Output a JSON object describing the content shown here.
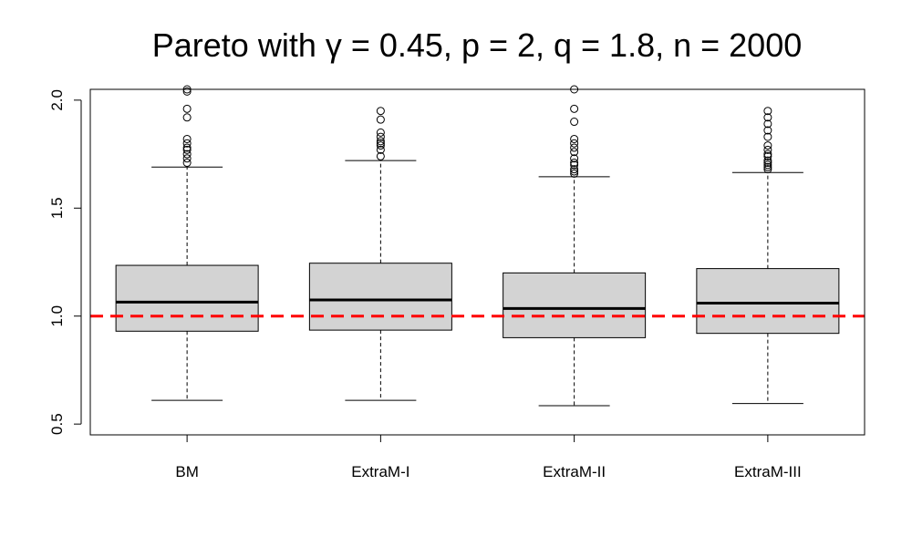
{
  "chart_data": {
    "type": "boxplot",
    "title": "Pareto with γ = 0.45, p = 2, q = 1.8, n = 2000",
    "xlabel": "",
    "ylabel": "",
    "ylim": [
      0.45,
      2.05
    ],
    "yticks": [
      0.5,
      1.0,
      1.5,
      2.0
    ],
    "ytick_labels": [
      "0.5",
      "1.0",
      "1.5",
      "2.0"
    ],
    "reference_line": {
      "y": 1.0,
      "color": "#ff0000",
      "style": "dashed"
    },
    "box_color": "#d3d3d3",
    "categories": [
      "BM",
      "ExtraM-I",
      "ExtraM-II",
      "ExtraM-III"
    ],
    "boxes": [
      {
        "name": "BM",
        "whisker_low": 0.61,
        "q1": 0.93,
        "median": 1.065,
        "q3": 1.235,
        "whisker_high": 1.69,
        "outliers": [
          1.71,
          1.73,
          1.75,
          1.77,
          1.78,
          1.8,
          1.82,
          1.92,
          1.96,
          2.04,
          2.05
        ]
      },
      {
        "name": "ExtraM-I",
        "whisker_low": 0.61,
        "q1": 0.935,
        "median": 1.075,
        "q3": 1.245,
        "whisker_high": 1.72,
        "outliers": [
          1.74,
          1.77,
          1.79,
          1.8,
          1.81,
          1.83,
          1.85,
          1.91,
          1.95
        ]
      },
      {
        "name": "ExtraM-II",
        "whisker_low": 0.585,
        "q1": 0.9,
        "median": 1.035,
        "q3": 1.2,
        "whisker_high": 1.645,
        "outliers": [
          1.66,
          1.67,
          1.68,
          1.7,
          1.71,
          1.73,
          1.76,
          1.78,
          1.8,
          1.82,
          1.9,
          1.96,
          2.05
        ]
      },
      {
        "name": "ExtraM-III",
        "whisker_low": 0.595,
        "q1": 0.92,
        "median": 1.06,
        "q3": 1.22,
        "whisker_high": 1.665,
        "outliers": [
          1.68,
          1.69,
          1.7,
          1.71,
          1.72,
          1.74,
          1.75,
          1.77,
          1.79,
          1.83,
          1.86,
          1.89,
          1.92,
          1.95
        ]
      }
    ]
  }
}
